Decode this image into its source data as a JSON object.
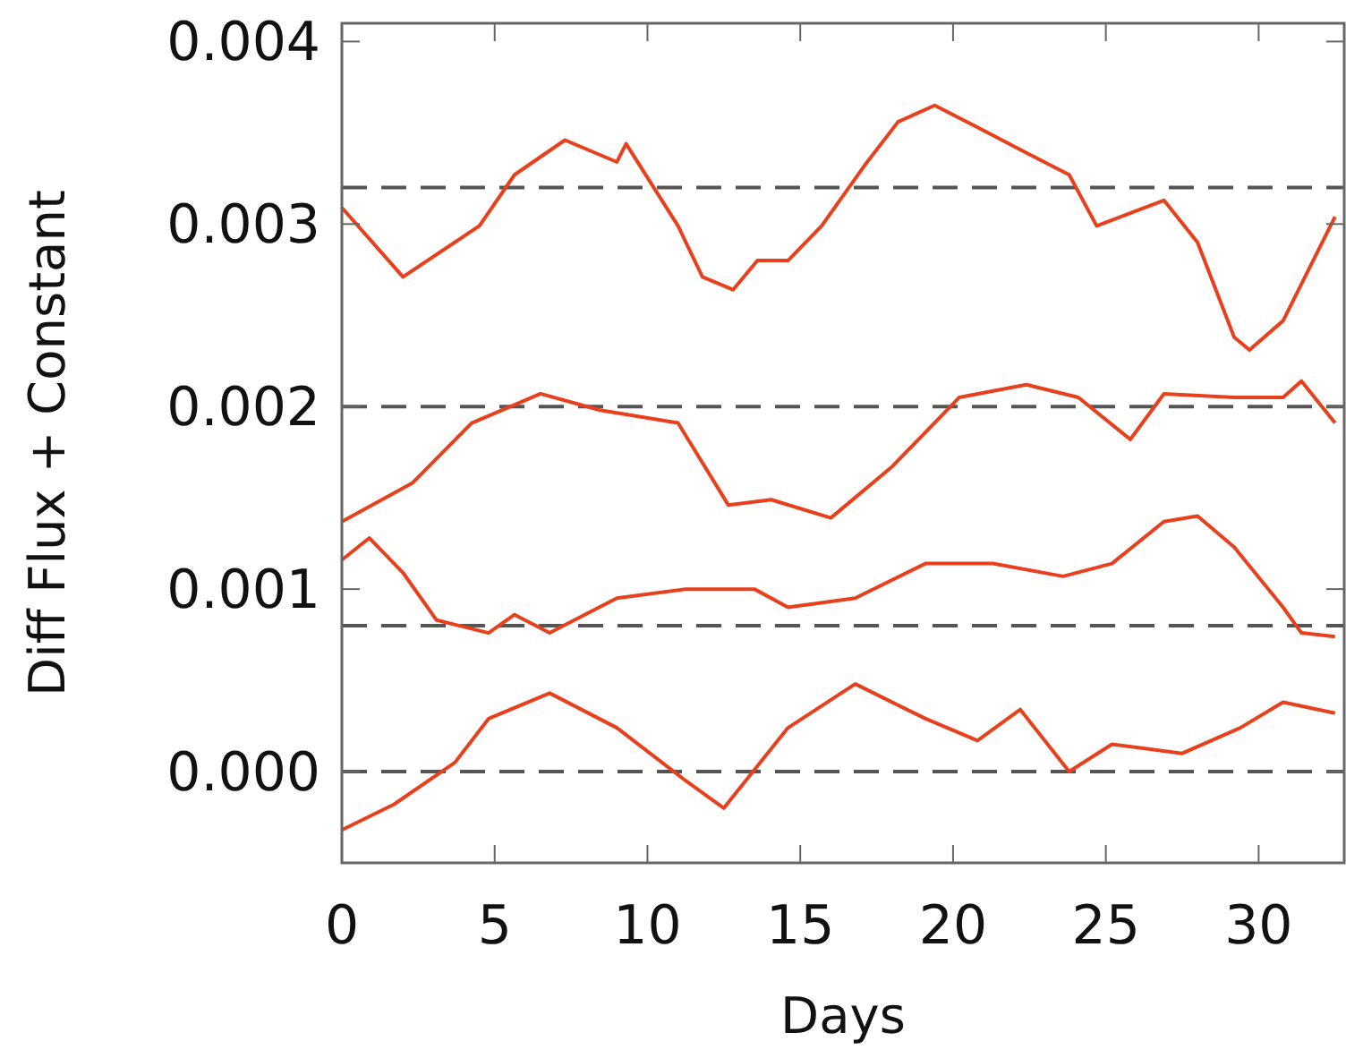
{
  "chart_data": {
    "type": "line",
    "xlabel": "Days",
    "ylabel": "Diff Flux + Constant",
    "xlim": [
      0,
      32.8
    ],
    "xticks": [
      0,
      5,
      10,
      15,
      20,
      25,
      30
    ],
    "ylim": [
      -0.0005,
      0.0041
    ],
    "yticks": [
      {
        "value": 0,
        "label": "0.000"
      },
      {
        "value": 0.001,
        "label": "0.001"
      },
      {
        "value": 0.002,
        "label": "0.002"
      },
      {
        "value": 0.003,
        "label": "0.003"
      },
      {
        "value": 0.004,
        "label": "0.004"
      }
    ],
    "grid": false,
    "marker": "none",
    "line_style": "solid",
    "ref_lines": [
      {
        "axis": "y",
        "value": 0.0032,
        "color": "#555555",
        "line_style": "dashed"
      },
      {
        "axis": "y",
        "value": 0.002,
        "color": "#555555",
        "line_style": "dashed"
      },
      {
        "axis": "y",
        "value": 0.0008,
        "color": "#555555",
        "line_style": "dashed"
      },
      {
        "axis": "y",
        "value": 0,
        "color": "#555555",
        "line_style": "dashed"
      }
    ],
    "series": [
      {
        "color": "#e8401c",
        "x": [
          0,
          2.0,
          4.5,
          5.65,
          7.3,
          9.0,
          9.3,
          11.0,
          11.8,
          12.8,
          13.6,
          14.6,
          15.7,
          17.1,
          18.2,
          19.4,
          20.8,
          22.4,
          23.8,
          24.7,
          25.8,
          26.9,
          28.0,
          29.2,
          29.7,
          30.8,
          32.5
        ],
        "values": [
          0.00309,
          0.00271,
          0.00299,
          0.00327,
          0.00346,
          0.00334,
          0.00344,
          0.00299,
          0.00271,
          0.00264,
          0.0028,
          0.0028,
          0.00299,
          0.00332,
          0.00356,
          0.00365,
          0.00353,
          0.00339,
          0.00327,
          0.00299,
          0.00306,
          0.00313,
          0.0029,
          0.00238,
          0.00231,
          0.00247,
          0.00304
        ]
      },
      {
        "color": "#e8401c",
        "x": [
          0,
          2.3,
          4.25,
          6.5,
          8.45,
          11.0,
          12.65,
          14.05,
          16.0,
          18.0,
          20.2,
          22.4,
          24.1,
          25.8,
          26.9,
          29.2,
          30.8,
          31.4,
          32.5
        ],
        "values": [
          0.00137,
          0.00158,
          0.00191,
          0.00207,
          0.00198,
          0.00191,
          0.00146,
          0.00149,
          0.00139,
          0.00167,
          0.00205,
          0.00212,
          0.00205,
          0.00182,
          0.00207,
          0.00205,
          0.00205,
          0.00214,
          0.00191
        ]
      },
      {
        "color": "#e8401c",
        "x": [
          0,
          0.9,
          2.0,
          3.1,
          4.8,
          5.65,
          6.8,
          9.0,
          11.25,
          13.5,
          14.6,
          16.8,
          19.1,
          21.3,
          23.6,
          25.2,
          26.9,
          28.0,
          29.2,
          30.8,
          31.4,
          32.5
        ],
        "values": [
          0.00116,
          0.00128,
          0.00109,
          0.00083,
          0.00076,
          0.00086,
          0.00076,
          0.00095,
          0.001,
          0.001,
          0.0009,
          0.00095,
          0.00114,
          0.00114,
          0.00107,
          0.00114,
          0.00137,
          0.0014,
          0.00123,
          0.0009,
          0.00076,
          0.00074
        ]
      },
      {
        "color": "#e8401c",
        "x": [
          0,
          1.7,
          3.7,
          4.8,
          6.8,
          9.0,
          11.25,
          12.5,
          14.6,
          16.8,
          19.1,
          20.8,
          22.2,
          23.8,
          25.2,
          27.5,
          29.4,
          30.8,
          32.5
        ],
        "values": [
          -0.00032,
          -0.00018,
          5e-05,
          0.00029,
          0.00043,
          0.00024,
          -5e-05,
          -0.0002,
          0.00024,
          0.00048,
          0.00029,
          0.00017,
          0.00034,
          0,
          0.00015,
          0.0001,
          0.00024,
          0.00038,
          0.00032
        ]
      }
    ]
  }
}
